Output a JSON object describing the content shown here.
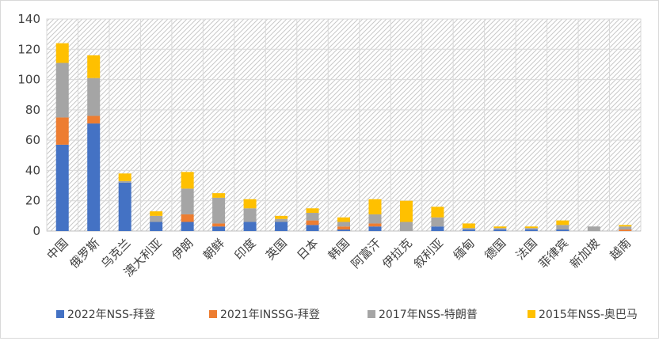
{
  "chart_data": {
    "type": "bar",
    "stacked": true,
    "categories": [
      "中国",
      "俄罗斯",
      "乌克兰",
      "澳大利亚",
      "伊朗",
      "朝鲜",
      "印度",
      "英国",
      "日本",
      "韩国",
      "阿富汗",
      "伊拉克",
      "叙利亚",
      "缅甸",
      "德国",
      "法国",
      "菲律宾",
      "新加坡",
      "越南"
    ],
    "series": [
      {
        "name": "2022年NSS-拜登",
        "color": "#4472c4",
        "values": [
          57,
          71,
          32,
          6,
          6,
          3,
          6,
          6,
          4,
          1,
          3,
          0,
          3,
          1,
          1,
          1,
          1,
          0,
          0
        ]
      },
      {
        "name": "2021年INSSG-拜登",
        "color": "#ed7d31",
        "values": [
          18,
          5,
          0,
          0,
          5,
          2,
          0,
          0,
          3,
          2,
          2,
          0,
          0,
          0,
          0,
          0,
          0,
          0,
          1
        ]
      },
      {
        "name": "2017年NSS-特朗普",
        "color": "#a5a5a5",
        "values": [
          36,
          25,
          1,
          4,
          17,
          17,
          9,
          2,
          5,
          3,
          6,
          6,
          6,
          1,
          1,
          1,
          3,
          3,
          2
        ]
      },
      {
        "name": "2015年NSS-奥巴马",
        "color": "#ffc000",
        "values": [
          13,
          15,
          5,
          3,
          11,
          3,
          6,
          2,
          3,
          3,
          10,
          14,
          7,
          3,
          1,
          1,
          3,
          0,
          1
        ]
      }
    ],
    "ylim": [
      0,
      140
    ],
    "yticks": [
      0,
      20,
      40,
      60,
      80,
      100,
      120,
      140
    ],
    "legend_position": "bottom",
    "plot_background": "diagonal-hatch",
    "grid": true
  }
}
